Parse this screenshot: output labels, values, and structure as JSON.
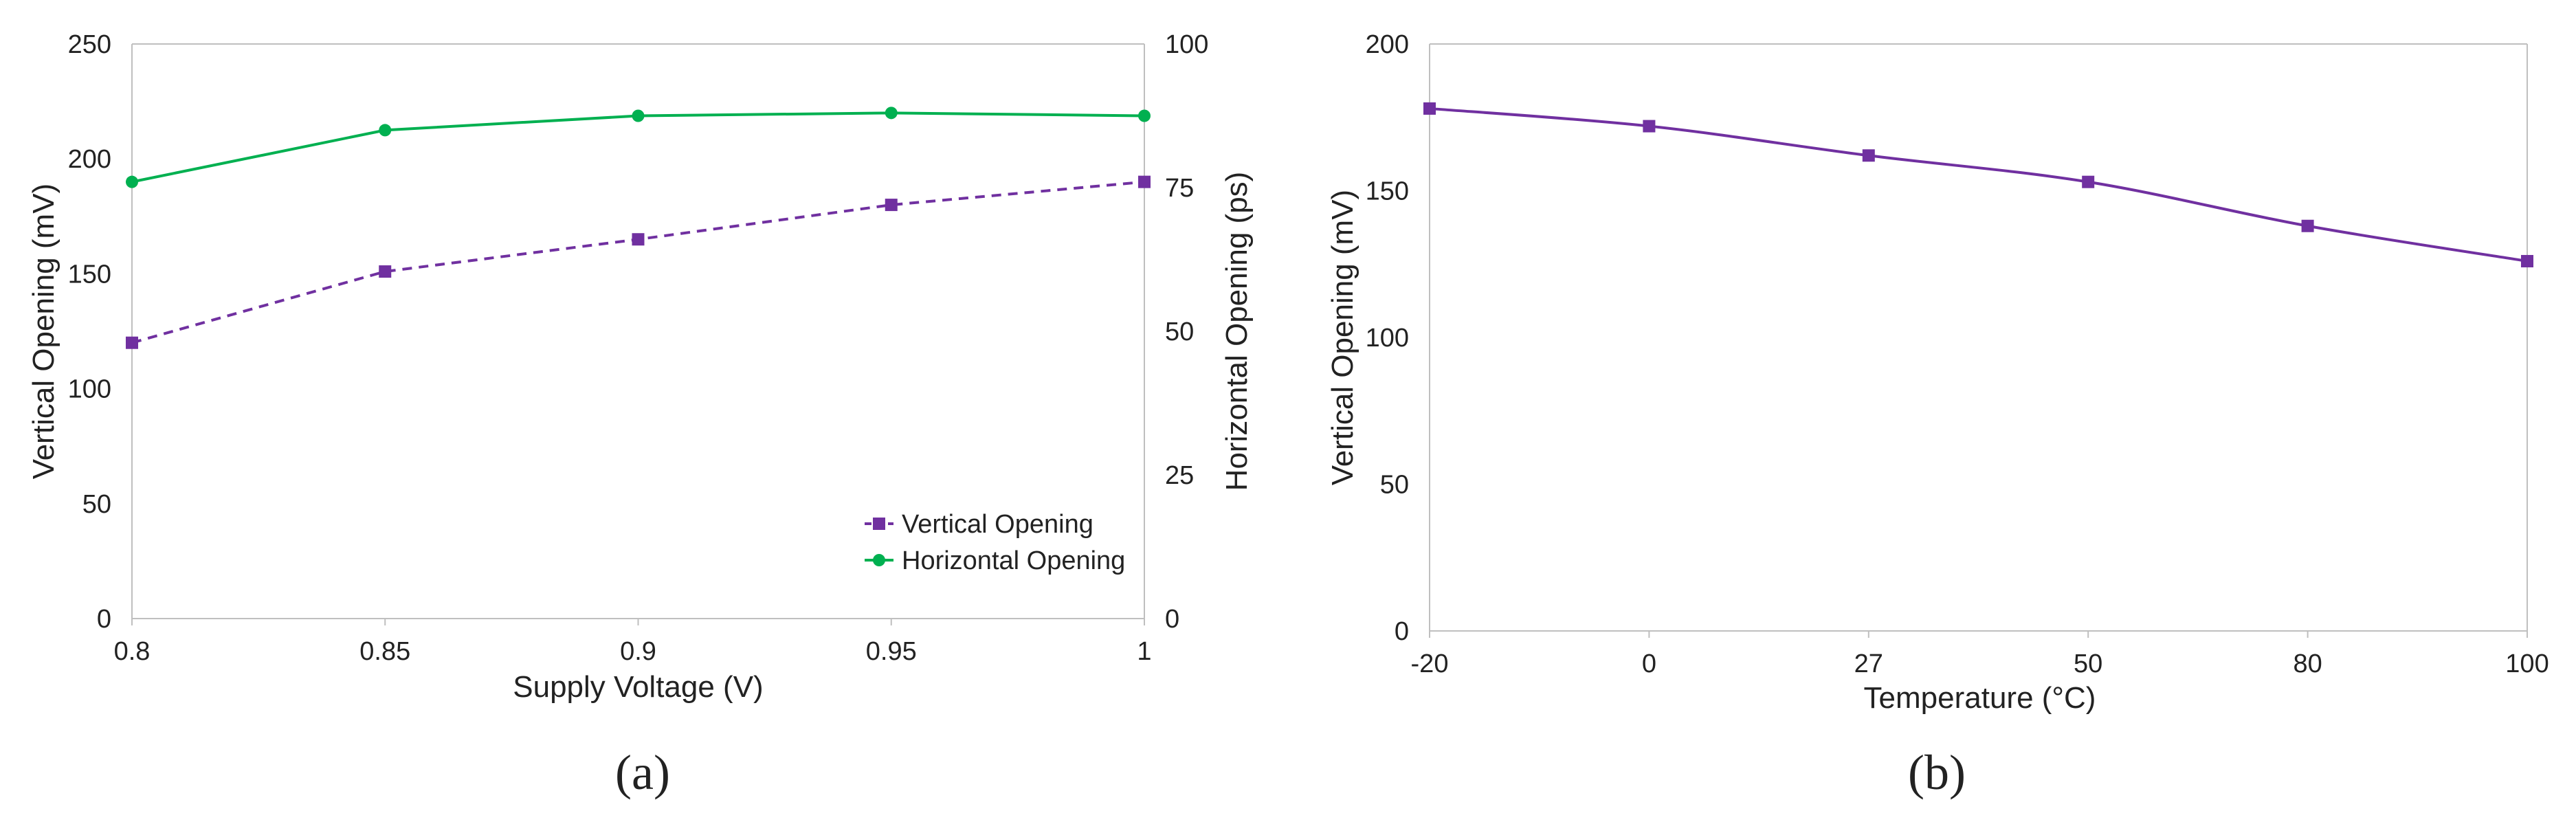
{
  "figure": {
    "panel_labels": [
      "(a)",
      "(b)"
    ]
  },
  "colors": {
    "vertical": "#7030a0",
    "horizontal": "#00b050",
    "axis": "#bfbfbf",
    "text": "#222222"
  },
  "chart_data": [
    {
      "type": "line",
      "panel": "(a)",
      "xlabel": "Supply Voltage (V)",
      "ylabel": "Vertical Opening (mV)",
      "y2label": "Horizontal Opening (ps)",
      "x": [
        0.8,
        0.85,
        0.9,
        0.95,
        1
      ],
      "x_tick_labels": [
        "0.8",
        "0.85",
        "0.9",
        "0.95",
        "1"
      ],
      "ylim": [
        0,
        250
      ],
      "y_ticks": [
        0,
        50,
        100,
        150,
        200,
        250
      ],
      "y2lim": [
        0,
        100
      ],
      "y2_ticks": [
        0,
        25,
        50,
        75,
        100
      ],
      "grid": false,
      "legend_position": "bottom-right",
      "series": [
        {
          "name": "Vertical Opening",
          "axis": "left",
          "values": [
            120,
            151,
            165,
            180,
            190
          ],
          "marker": "square",
          "dash": "dashed",
          "color": "#7030a0"
        },
        {
          "name": "Horizontal Opening",
          "axis": "right",
          "values": [
            76,
            85,
            87.5,
            88,
            87.5
          ],
          "marker": "circle",
          "dash": "solid",
          "color": "#00b050"
        }
      ]
    },
    {
      "type": "line",
      "panel": "(b)",
      "xlabel": "Temperature (°C)",
      "ylabel": "Vertical Opening (mV)",
      "categories": [
        "-20",
        "0",
        "27",
        "50",
        "80",
        "100"
      ],
      "ylim": [
        0,
        200
      ],
      "y_ticks": [
        0,
        50,
        100,
        150,
        200
      ],
      "grid": false,
      "series": [
        {
          "values": [
            178,
            172,
            162,
            153,
            138,
            126
          ],
          "marker": "square",
          "dash": "solid",
          "color": "#7030a0"
        }
      ]
    }
  ]
}
